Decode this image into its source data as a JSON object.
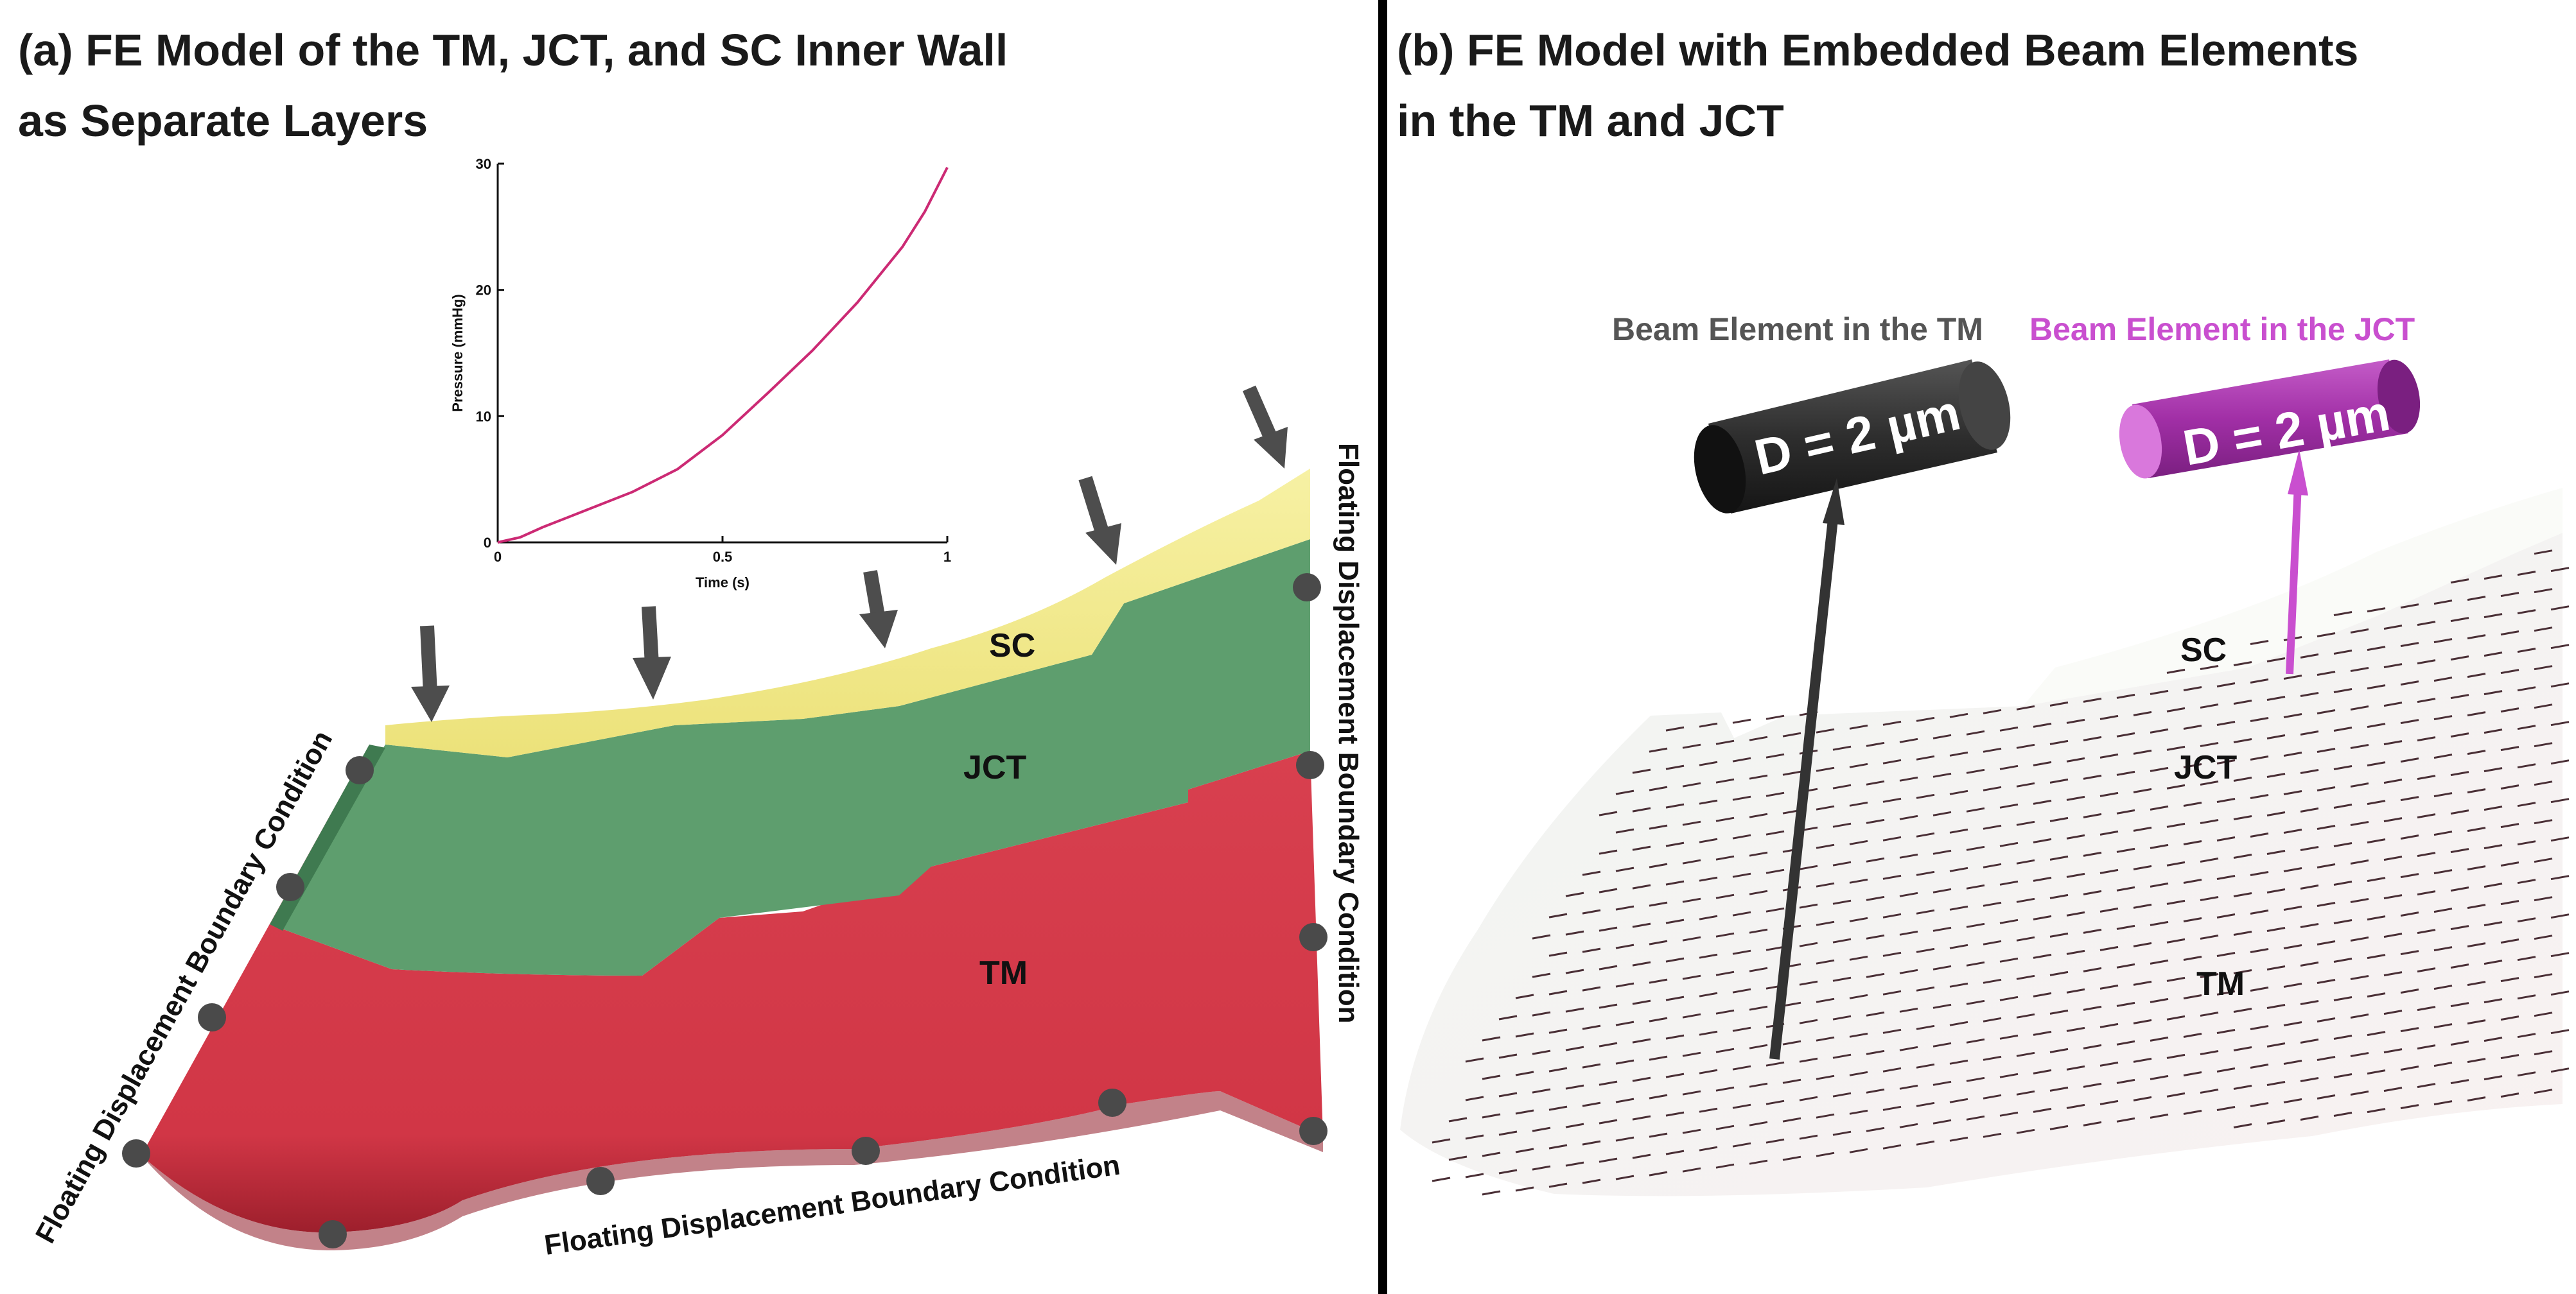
{
  "panel_a": {
    "title_line1": "(a) FE Model of the TM, JCT, and SC Inner Wall",
    "title_line2": "as Separate Layers",
    "layers": {
      "sc": "SC",
      "jct": "JCT",
      "tm": "TM"
    },
    "boundary_label": "Floating Displacement Boundary Condition",
    "colors": {
      "sc": "#f2ea8a",
      "jct": "#5e9e6e",
      "tm": "#d53a4c",
      "tm_dark": "#a3222f",
      "nodes": "#4a4a4a",
      "arrows": "#4d4d4d"
    },
    "inset_chart": {
      "xlabel": "Time (s)",
      "ylabel": "Pressure (mmHg)",
      "x_ticks": [
        "0",
        "0.5",
        "1"
      ],
      "y_ticks": [
        "0",
        "10",
        "20",
        "30"
      ]
    }
  },
  "panel_b": {
    "title_line1": "(b) FE Model with Embedded Beam Elements",
    "title_line2": "in the TM and JCT",
    "beam_tm": {
      "title": "Beam Element in the TM",
      "size_label": "D = 2 µm",
      "color": "#333333",
      "title_color": "#555555"
    },
    "beam_jct": {
      "title": "Beam Element in the JCT",
      "size_label": "D = 2 µm",
      "color": "#a12fa6",
      "title_color": "#c94fcf"
    },
    "layers": {
      "sc": "SC",
      "jct": "JCT",
      "tm": "TM"
    }
  },
  "chart_data": {
    "type": "line",
    "title": "",
    "xlabel": "Time (s)",
    "ylabel": "Pressure (mmHg)",
    "xlim": [
      0,
      1
    ],
    "ylim": [
      0,
      30
    ],
    "x_ticks": [
      0,
      0.5,
      1
    ],
    "y_ticks": [
      0,
      10,
      20,
      30
    ],
    "grid": false,
    "series": [
      {
        "color": "#cc2a74",
        "x": [
          0,
          0.05,
          0.1,
          0.2,
          0.3,
          0.4,
          0.5,
          0.6,
          0.7,
          0.8,
          0.9,
          0.95,
          1.0
        ],
        "y": [
          0,
          0.4,
          1.2,
          2.6,
          4.0,
          5.8,
          8.5,
          11.8,
          15.2,
          19.0,
          23.4,
          26.2,
          29.7
        ]
      }
    ]
  }
}
